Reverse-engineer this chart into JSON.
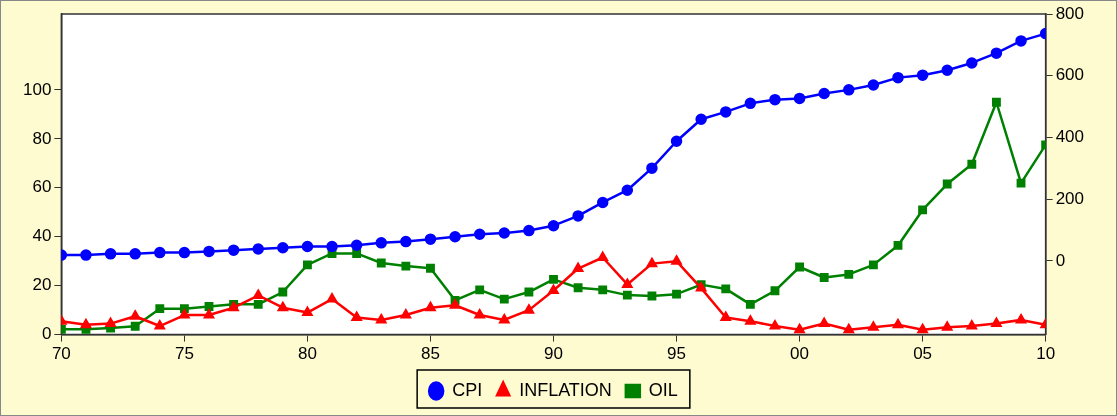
{
  "chart_data": {
    "type": "line",
    "x": [
      1970,
      1971,
      1972,
      1973,
      1974,
      1975,
      1976,
      1977,
      1978,
      1979,
      1980,
      1981,
      1982,
      1983,
      1984,
      1985,
      1986,
      1987,
      1988,
      1989,
      1990,
      1991,
      1992,
      1993,
      1994,
      1995,
      1996,
      1997,
      1998,
      1999,
      2000,
      2001,
      2002,
      2003,
      2004,
      2005,
      2006,
      2007,
      2008,
      2009,
      2010
    ],
    "series": [
      {
        "name": "CPI",
        "color": "#0000ff",
        "marker": "circle",
        "values": [
          32.5,
          32.5,
          33,
          33,
          33.5,
          33.5,
          34,
          34.5,
          35,
          35.5,
          36,
          36,
          36.5,
          37.5,
          38,
          39,
          40,
          41,
          41.5,
          42.5,
          44.5,
          48.5,
          54,
          59,
          68,
          79,
          88,
          91,
          94.5,
          96,
          96.5,
          98.5,
          100,
          102,
          105,
          106,
          108,
          111,
          115,
          120,
          123
        ]
      },
      {
        "name": "INFLATION",
        "color": "#ff0000",
        "marker": "triangle",
        "values": [
          5.5,
          4,
          4.5,
          7.5,
          3.5,
          8,
          8,
          11,
          16,
          11,
          9,
          14.5,
          7,
          6,
          8,
          11,
          12,
          8,
          6,
          10,
          18,
          27,
          31.5,
          20.5,
          29,
          30,
          19,
          7,
          5.5,
          3.5,
          2,
          4.5,
          2,
          3,
          4,
          2,
          3,
          3.5,
          4.5,
          6,
          4
        ]
      },
      {
        "name": "OIL",
        "color": "#008000",
        "marker": "square",
        "axis": "y2",
        "values": [
          -222,
          -222,
          -218,
          -212,
          -155,
          -155,
          -148,
          -141,
          -141,
          -101,
          -13,
          24,
          24,
          -7,
          -17,
          -24,
          -128,
          -94,
          -124,
          -101,
          -60,
          -87,
          -94,
          -111,
          -114,
          -108,
          -77,
          -91,
          -141,
          -97,
          -20,
          -54,
          -44,
          -13,
          50,
          165,
          249,
          313,
          514,
          252,
          376
        ]
      }
    ],
    "xlim": [
      1970,
      2010
    ],
    "xticks": [
      {
        "value": 1970,
        "label": "70"
      },
      {
        "value": 1975,
        "label": "75"
      },
      {
        "value": 1980,
        "label": "80"
      },
      {
        "value": 1985,
        "label": "85"
      },
      {
        "value": 1990,
        "label": "90"
      },
      {
        "value": 1995,
        "label": "95"
      },
      {
        "value": 2000,
        "label": "00"
      },
      {
        "value": 2005,
        "label": "05"
      },
      {
        "value": 2010,
        "label": "10"
      }
    ],
    "ylim": [
      0,
      131
    ],
    "yticks": [
      0,
      20,
      40,
      60,
      80,
      100
    ],
    "y2lim": [
      -239,
      800
    ],
    "y2ticks": [
      0,
      200,
      400,
      600,
      800
    ],
    "grid": false,
    "legend": "bottom",
    "line_style": "solid"
  }
}
